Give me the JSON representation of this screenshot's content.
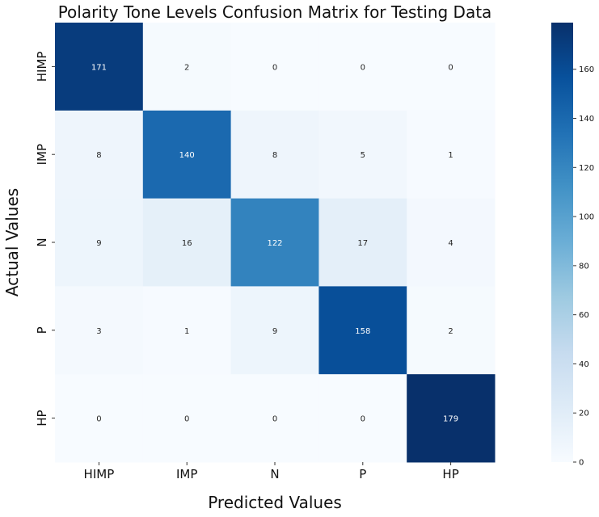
{
  "chart_data": {
    "type": "heatmap",
    "title": "Polarity Tone Levels Confusion Matrix for Testing Data",
    "xlabel": "Predicted Values",
    "ylabel": "Actual Values",
    "x_categories": [
      "HIMP",
      "IMP",
      "N",
      "P",
      "HP"
    ],
    "y_categories": [
      "HIMP",
      "IMP",
      "N",
      "P",
      "HP"
    ],
    "values": [
      [
        171,
        2,
        0,
        0,
        0
      ],
      [
        8,
        140,
        8,
        5,
        1
      ],
      [
        9,
        16,
        122,
        17,
        4
      ],
      [
        3,
        1,
        9,
        158,
        2
      ],
      [
        0,
        0,
        0,
        0,
        179
      ]
    ],
    "colorbar": {
      "min": 0,
      "max": 179,
      "ticks": [
        0,
        20,
        40,
        60,
        80,
        100,
        120,
        140,
        160
      ],
      "colormap": "Blues",
      "color_low": "#f7fbff",
      "color_high": "#08306b"
    }
  }
}
